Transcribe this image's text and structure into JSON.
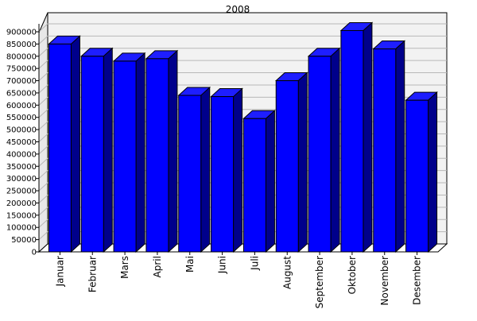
{
  "chart_data": {
    "type": "bar",
    "title": "2008",
    "xlabel": "",
    "ylabel": "",
    "categories": [
      "Januar",
      "Februar",
      "Mars",
      "April",
      "Mai",
      "Juni",
      "Juli",
      "August",
      "September",
      "Oktober",
      "November",
      "Desember"
    ],
    "values": [
      850000,
      800000,
      780000,
      790000,
      640000,
      635000,
      545000,
      700000,
      800000,
      905000,
      830000,
      620000
    ],
    "ylim": [
      0,
      900000
    ],
    "yticks": [
      0,
      50000,
      100000,
      150000,
      200000,
      250000,
      300000,
      350000,
      400000,
      450000,
      500000,
      550000,
      600000,
      650000,
      700000,
      750000,
      800000,
      850000,
      900000
    ],
    "grid": true,
    "legend": "none",
    "colors": {
      "bar_front": "#0000ff",
      "bar_side": "#00008b",
      "bar_top": "#1e1eff",
      "back_wall": "#f2f2f2",
      "grid": "#b8b8b8",
      "axis": "#000000"
    }
  }
}
